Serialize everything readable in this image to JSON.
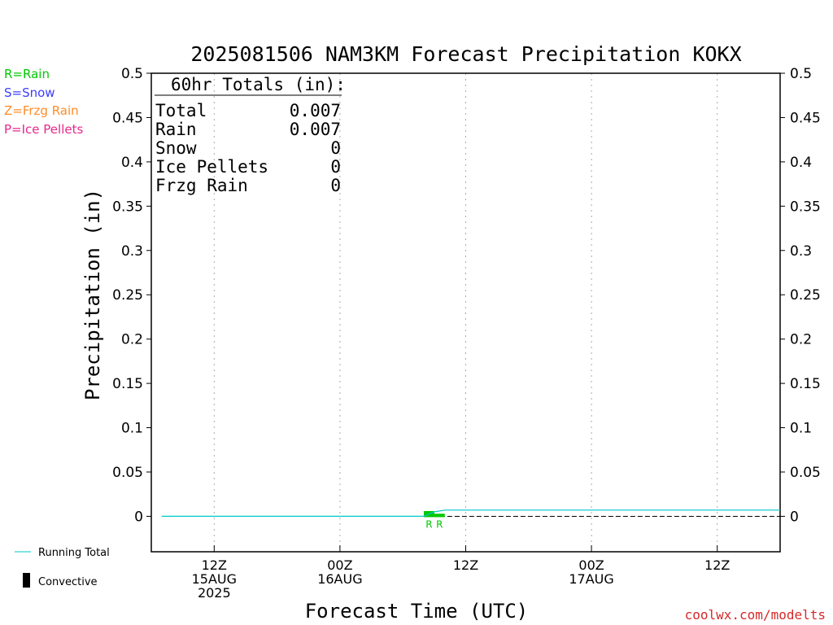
{
  "chart_data": {
    "type": "line",
    "title": "2025081506 NAM3KM Forecast Precipitation KOKX",
    "xlabel": "Forecast Time (UTC)",
    "ylabel": "Precipitation (in)",
    "ylim": [
      -0.04,
      0.5
    ],
    "xlim_hours": [
      0,
      60
    ],
    "yticks": [
      {
        "value": 0,
        "label": "0"
      },
      {
        "value": 0.05,
        "label": "0.05"
      },
      {
        "value": 0.1,
        "label": "0.1"
      },
      {
        "value": 0.15,
        "label": "0.15"
      },
      {
        "value": 0.2,
        "label": "0.2"
      },
      {
        "value": 0.25,
        "label": "0.25"
      },
      {
        "value": 0.3,
        "label": "0.3"
      },
      {
        "value": 0.35,
        "label": "0.35"
      },
      {
        "value": 0.4,
        "label": "0.4"
      },
      {
        "value": 0.45,
        "label": "0.45"
      },
      {
        "value": 0.5,
        "label": "0.5"
      }
    ],
    "xticks": [
      {
        "hour": 6,
        "lines": [
          "12Z",
          "15AUG",
          "2025"
        ]
      },
      {
        "hour": 18,
        "lines": [
          "00Z",
          "16AUG"
        ]
      },
      {
        "hour": 30,
        "lines": [
          "12Z"
        ]
      },
      {
        "hour": 42,
        "lines": [
          "00Z",
          "17AUG"
        ]
      },
      {
        "hour": 54,
        "lines": [
          "12Z"
        ]
      }
    ],
    "grid": "vertical-dotted",
    "series": [
      {
        "name": "Running Total",
        "color": "#00c8c8",
        "points": [
          [
            1,
            0
          ],
          [
            26,
            0
          ],
          [
            27,
            0.005
          ],
          [
            28,
            0.007
          ],
          [
            60,
            0.007
          ]
        ]
      }
    ],
    "bars": [
      {
        "hour": 26.5,
        "value": 0.005,
        "precip_type": "R",
        "color": "#00c800"
      },
      {
        "hour": 27.5,
        "value": 0.002,
        "precip_type": "R",
        "color": "#00c800"
      }
    ],
    "markers": [
      {
        "hour": 26.5,
        "label": "R"
      },
      {
        "hour": 27.5,
        "label": "R"
      }
    ]
  },
  "totals_box": {
    "header": "60hr Totals (in):",
    "rows": [
      {
        "label": "Total",
        "value": "0.007"
      },
      {
        "label": "Rain",
        "value": "0.007"
      },
      {
        "label": "Snow",
        "value": "0"
      },
      {
        "label": "Ice Pellets",
        "value": "0"
      },
      {
        "label": "Frzg Rain",
        "value": "0"
      }
    ]
  },
  "type_legend": [
    {
      "text": "R=Rain",
      "color": "#00c800"
    },
    {
      "text": "S=Snow",
      "color": "#3c3cff"
    },
    {
      "text": "Z=Frzg Rain",
      "color": "#ff8c28"
    },
    {
      "text": "P=Ice Pellets",
      "color": "#e6288c"
    }
  ],
  "bottom_legend": {
    "running_total": "Running Total",
    "convective": "Convective",
    "running_total_color": "#00c8c8"
  },
  "credit": "coolwx.com/modelts"
}
